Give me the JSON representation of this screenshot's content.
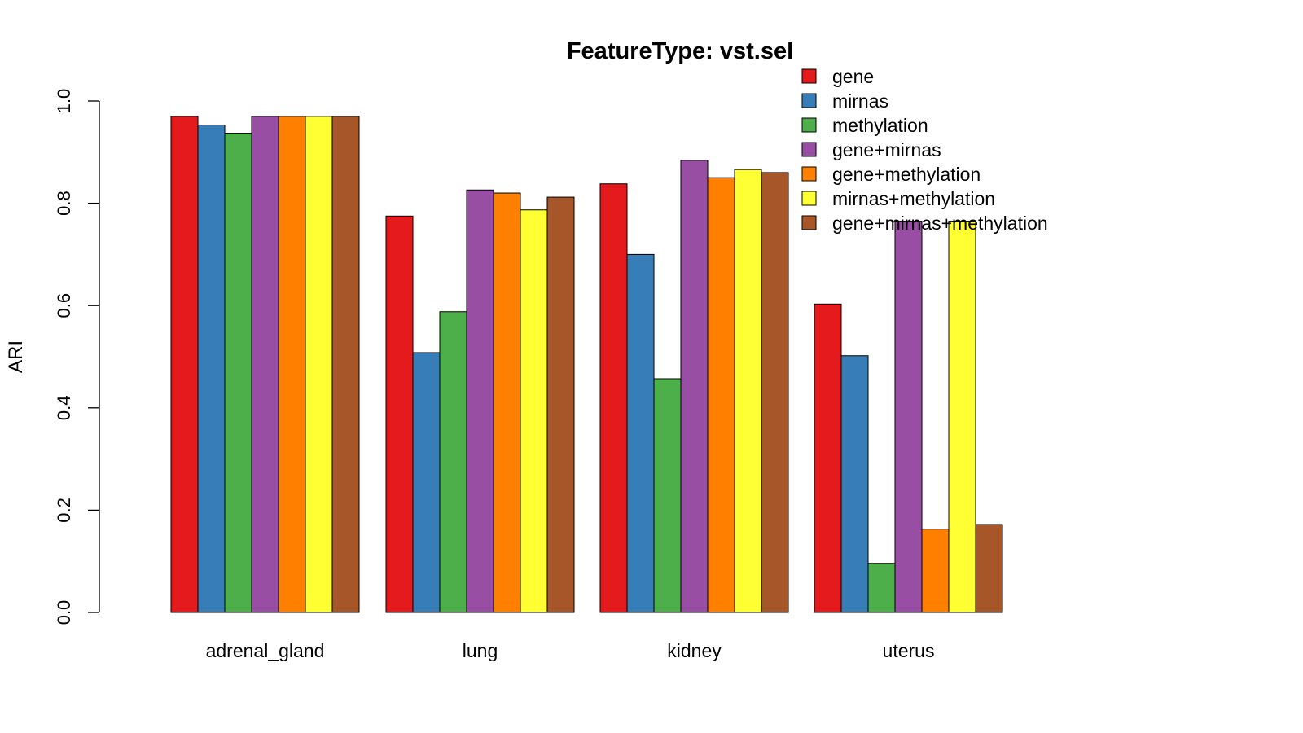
{
  "chart_data": {
    "type": "bar",
    "title": "FeatureType: vst.sel",
    "xlabel": "",
    "ylabel": "ARI",
    "ylim": [
      0,
      1.0
    ],
    "yticks": [
      "0.0",
      "0.2",
      "0.4",
      "0.6",
      "0.8",
      "1.0"
    ],
    "categories": [
      "adrenal_gland",
      "lung",
      "kidney",
      "uterus"
    ],
    "legend_position": "top-right",
    "series": [
      {
        "name": "gene",
        "color": "#E41A1C",
        "values": [
          0.97,
          0.775,
          0.838,
          0.603
        ]
      },
      {
        "name": "mirnas",
        "color": "#377EB8",
        "values": [
          0.953,
          0.508,
          0.7,
          0.502
        ]
      },
      {
        "name": "methylation",
        "color": "#4DAF4A",
        "values": [
          0.937,
          0.588,
          0.457,
          0.096
        ]
      },
      {
        "name": "gene+mirnas",
        "color": "#984EA3",
        "values": [
          0.97,
          0.826,
          0.884,
          0.765
        ]
      },
      {
        "name": "gene+methylation",
        "color": "#FF7F00",
        "values": [
          0.97,
          0.82,
          0.85,
          0.163
        ]
      },
      {
        "name": "mirnas+methylation",
        "color": "#FFFF33",
        "values": [
          0.97,
          0.787,
          0.866,
          0.765
        ]
      },
      {
        "name": "gene+mirnas+methylation",
        "color": "#A65628",
        "values": [
          0.97,
          0.812,
          0.86,
          0.172
        ]
      }
    ]
  }
}
